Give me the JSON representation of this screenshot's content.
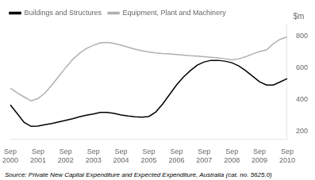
{
  "chart_data": {
    "type": "line",
    "ylabel": "$m",
    "annotations": [
      "Source: Private New Capital Expenditure and Expected Expenditure, Australia (cat. no. 5625.0)"
    ],
    "categories": [
      "Sep\n2000",
      null,
      null,
      null,
      "Sep\n2001",
      null,
      null,
      null,
      "Sep\n2002",
      null,
      null,
      null,
      "Sep\n2003",
      null,
      null,
      null,
      "Sep\n2004",
      null,
      null,
      null,
      "Sep\n2005",
      null,
      null,
      null,
      "Sep\n2006",
      null,
      null,
      null,
      "Sep\n2007",
      null,
      null,
      null,
      "Sep\n2008",
      null,
      null,
      null,
      "Sep\n2009",
      null,
      null,
      null,
      "Sep\n2010"
    ],
    "series": [
      {
        "name": "Buildings and Structures",
        "color": "#000000",
        "values": [
          365,
          310,
          255,
          230,
          232,
          240,
          248,
          258,
          268,
          278,
          290,
          300,
          308,
          318,
          318,
          312,
          302,
          295,
          290,
          288,
          292,
          320,
          370,
          430,
          490,
          540,
          580,
          615,
          635,
          645,
          645,
          640,
          630,
          610,
          580,
          545,
          510,
          490,
          490,
          510,
          530
        ]
      },
      {
        "name": "Equipment, Plant and Machinery",
        "color": "#b0b0b0",
        "values": [
          470,
          440,
          415,
          390,
          405,
          440,
          490,
          545,
          600,
          650,
          690,
          720,
          740,
          755,
          758,
          752,
          740,
          728,
          715,
          705,
          698,
          692,
          688,
          685,
          682,
          678,
          674,
          672,
          668,
          664,
          660,
          655,
          648,
          655,
          668,
          685,
          700,
          710,
          750,
          778,
          792
        ]
      }
    ],
    "ylim": [
      150,
      870
    ],
    "yticks": [
      200,
      400,
      600,
      800
    ],
    "grid": false,
    "legend": "upper left"
  }
}
